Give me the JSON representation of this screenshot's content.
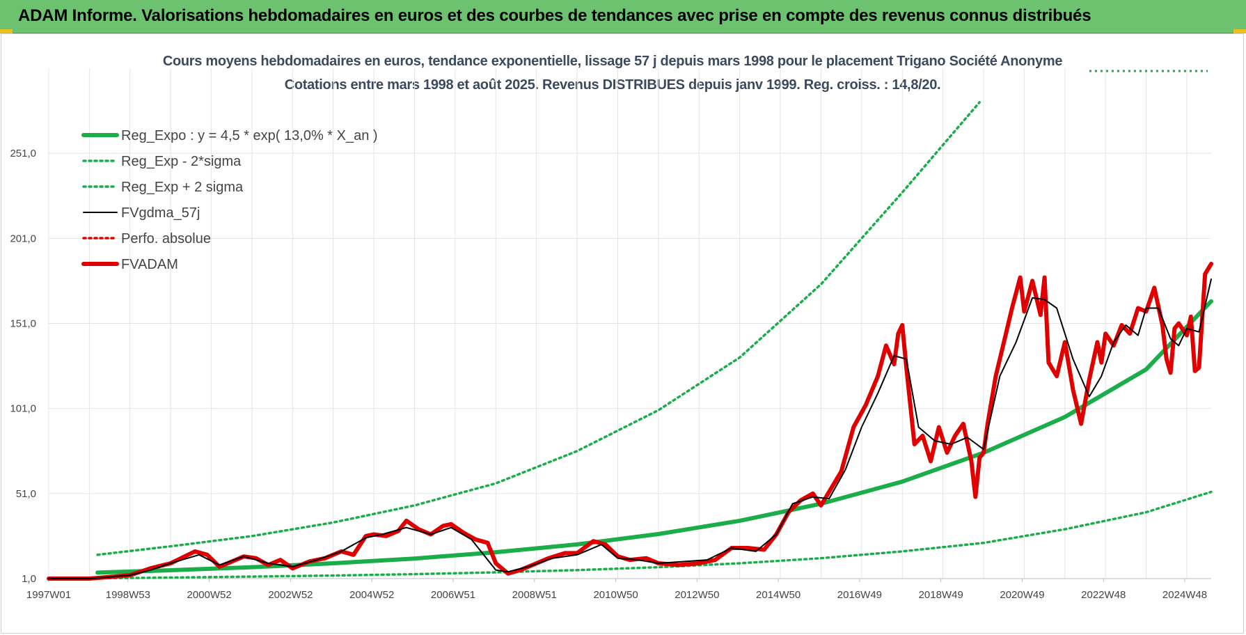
{
  "header": {
    "title": "ADAM Informe. Valorisations hebdomadaires en euros et des courbes de tendances avec prise en compte des revenus connus distribués"
  },
  "chart_data": {
    "type": "line",
    "title_line1": "Cours moyens hebdomadaires en euros, tendance exponentielle, lissage 57 j depuis mars 1998 pour le placement Trigano Société Anonyme",
    "title_line2": "Cotations entre mars 1998 et août 2025. Revenus DISTRIBUES depuis janv 1999. Reg. croiss. : 14,8/20.",
    "xlabel": "",
    "ylabel": "",
    "x_ticks": [
      "1997W01",
      "1998W53",
      "2000W52",
      "2002W52",
      "2004W52",
      "2006W51",
      "2008W51",
      "2010W50",
      "2012W50",
      "2014W50",
      "2016W49",
      "2018W49",
      "2020W49",
      "2022W48",
      "2024W48"
    ],
    "y_ticks": [
      "1,0",
      "51,0",
      "101,0",
      "151,0",
      "201,0",
      "251,0"
    ],
    "ylim": [
      1,
      301
    ],
    "xlim": [
      1997.0,
      2025.6
    ],
    "grid": true,
    "legend_position": "top-left",
    "legend": [
      {
        "label": "Reg_Expo : y = 4,5 * exp( 13,0% *  X_an )",
        "color": "#1aad4a",
        "style": "solid-thick"
      },
      {
        "label": "Reg_Exp - 2*sigma",
        "color": "#1aad4a",
        "style": "dotted"
      },
      {
        "label": "Reg_Exp + 2 sigma",
        "color": "#1aad4a",
        "style": "dotted"
      },
      {
        "label": "FVgdma_57j",
        "color": "#000000",
        "style": "solid"
      },
      {
        "label": "Perfo. absolue",
        "color": "#e00000",
        "style": "dotted"
      },
      {
        "label": "FVADAM",
        "color": "#e00000",
        "style": "solid-thick"
      }
    ],
    "series": [
      {
        "name": "Reg_Expo : y = 4,5 * exp( 13,0% *  X_an )",
        "x": [
          1998.2,
          2000,
          2002,
          2004,
          2006,
          2008,
          2010,
          2012,
          2014,
          2016,
          2018,
          2020,
          2022,
          2024,
          2025.6
        ],
        "values": [
          4.5,
          5.9,
          7.7,
          10.0,
          12.8,
          16.5,
          21.1,
          27.2,
          35.0,
          45.0,
          58.0,
          75.0,
          96.0,
          124.0,
          164.0
        ]
      },
      {
        "name": "Reg_Exp - 2*sigma",
        "x": [
          1998.2,
          2000,
          2002,
          2004,
          2006,
          2008,
          2010,
          2012,
          2014,
          2016,
          2018,
          2020,
          2022,
          2024,
          2025.6
        ],
        "values": [
          1.2,
          1.6,
          2.2,
          2.8,
          3.6,
          4.7,
          6.0,
          7.7,
          10.0,
          13.0,
          17.0,
          22.0,
          30.0,
          40.0,
          52.0
        ]
      },
      {
        "name": "Reg_Exp + 2 sigma",
        "x": [
          1998.2,
          2000,
          2002,
          2004,
          2006,
          2008,
          2010,
          2012,
          2014,
          2016,
          2018,
          2019.9
        ],
        "values": [
          15.0,
          20.0,
          26.0,
          34.0,
          44.0,
          57.0,
          76.0,
          100.0,
          131.0,
          174.0,
          228.0,
          281.0
        ]
      },
      {
        "name": "FVgdma_57j",
        "x": [
          1997.0,
          1998.0,
          1998.5,
          1999.0,
          1999.5,
          2000.0,
          2000.7,
          2001.2,
          2001.8,
          2002.4,
          2003.0,
          2003.6,
          2004.2,
          2004.8,
          2005.2,
          2005.8,
          2006.4,
          2006.9,
          2007.4,
          2008.0,
          2008.3,
          2008.8,
          2009.4,
          2010.0,
          2010.6,
          2011.0,
          2011.5,
          2012.0,
          2012.6,
          2013.2,
          2013.8,
          2014.4,
          2014.9,
          2015.3,
          2015.8,
          2016.2,
          2016.6,
          2017.0,
          2017.4,
          2017.8,
          2018.1,
          2018.4,
          2018.8,
          2019.2,
          2019.6,
          2020.0,
          2020.4,
          2020.8,
          2021.2,
          2021.5,
          2021.8,
          2022.2,
          2022.6,
          2022.9,
          2023.2,
          2023.5,
          2023.8,
          2024.0,
          2024.3,
          2024.6,
          2024.8,
          2025.0,
          2025.3,
          2025.6
        ],
        "values": [
          1,
          1,
          2,
          3,
          6,
          10,
          15,
          9,
          14,
          10,
          8,
          12,
          17,
          25,
          27,
          31,
          27,
          31,
          24,
          6,
          5,
          8,
          13,
          15,
          21,
          13,
          12,
          10,
          11,
          12,
          19,
          17,
          27,
          45,
          49,
          48,
          65,
          90,
          110,
          132,
          130,
          90,
          82,
          80,
          84,
          77,
          120,
          140,
          166,
          165,
          160,
          130,
          108,
          120,
          140,
          150,
          144,
          160,
          160,
          142,
          138,
          148,
          146,
          177
        ]
      },
      {
        "name": "FVADAM",
        "x": [
          1997.0,
          1998.0,
          1998.5,
          1999.0,
          1999.5,
          2000.0,
          2000.6,
          2000.9,
          2001.2,
          2001.5,
          2001.8,
          2002.1,
          2002.4,
          2002.7,
          2003.0,
          2003.4,
          2003.8,
          2004.2,
          2004.5,
          2004.8,
          2005.0,
          2005.3,
          2005.6,
          2005.8,
          2006.1,
          2006.4,
          2006.7,
          2006.9,
          2007.2,
          2007.5,
          2007.8,
          2008.0,
          2008.3,
          2008.6,
          2008.9,
          2009.3,
          2009.7,
          2010.0,
          2010.4,
          2010.7,
          2011.0,
          2011.3,
          2011.7,
          2012.0,
          2012.5,
          2013.0,
          2013.4,
          2013.8,
          2014.2,
          2014.6,
          2014.9,
          2015.2,
          2015.5,
          2015.8,
          2016.0,
          2016.2,
          2016.5,
          2016.8,
          2017.1,
          2017.4,
          2017.6,
          2017.8,
          2017.9,
          2018.0,
          2018.1,
          2018.3,
          2018.5,
          2018.7,
          2018.9,
          2019.1,
          2019.3,
          2019.5,
          2019.7,
          2019.8,
          2019.9,
          2020.0,
          2020.1,
          2020.3,
          2020.5,
          2020.7,
          2020.9,
          2021.0,
          2021.2,
          2021.4,
          2021.5,
          2021.6,
          2021.8,
          2022.0,
          2022.2,
          2022.4,
          2022.6,
          2022.8,
          2022.9,
          2023.0,
          2023.2,
          2023.4,
          2023.6,
          2023.8,
          2024.0,
          2024.2,
          2024.4,
          2024.5,
          2024.6,
          2024.7,
          2024.8,
          2025.0,
          2025.1,
          2025.2,
          2025.3,
          2025.45,
          2025.6
        ],
        "values": [
          1,
          1,
          2,
          3,
          7,
          10,
          17,
          15,
          8,
          11,
          14,
          13,
          9,
          12,
          7,
          11,
          13,
          17,
          15,
          26,
          27,
          26,
          29,
          35,
          30,
          27,
          32,
          33,
          28,
          24,
          22,
          10,
          4,
          6,
          9,
          13,
          16,
          16,
          23,
          21,
          14,
          12,
          13,
          10,
          9,
          10,
          12,
          19,
          19,
          18,
          27,
          40,
          47,
          51,
          44,
          52,
          64,
          90,
          103,
          120,
          138,
          127,
          145,
          150,
          125,
          80,
          85,
          70,
          90,
          75,
          85,
          92,
          70,
          49,
          72,
          75,
          92,
          120,
          140,
          160,
          178,
          158,
          176,
          156,
          178,
          128,
          120,
          140,
          112,
          92,
          118,
          140,
          128,
          145,
          138,
          150,
          145,
          160,
          158,
          172,
          150,
          130,
          122,
          148,
          151,
          144,
          155,
          123,
          125,
          180,
          186
        ]
      }
    ]
  }
}
